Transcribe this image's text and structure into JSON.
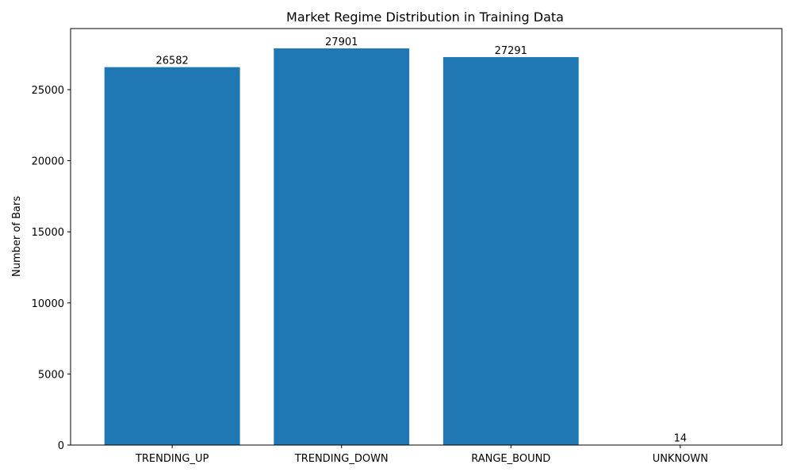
{
  "chart_data": {
    "type": "bar",
    "title": "Market Regime Distribution in Training Data",
    "xlabel": "",
    "ylabel": "Number of Bars",
    "categories": [
      "TRENDING_UP",
      "TRENDING_DOWN",
      "RANGE_BOUND",
      "UNKNOWN"
    ],
    "values": [
      26582,
      27901,
      27291,
      14
    ],
    "data_labels": [
      "26582",
      "27901",
      "27291",
      "14"
    ],
    "ylim": [
      0,
      29296
    ],
    "yticks": [
      0,
      5000,
      10000,
      15000,
      20000,
      25000
    ],
    "ytick_labels": [
      "0",
      "5000",
      "10000",
      "15000",
      "20000",
      "25000"
    ],
    "grid": false,
    "legend": "none",
    "bar_color": "#1f77b4",
    "axis_color": "#000000"
  }
}
